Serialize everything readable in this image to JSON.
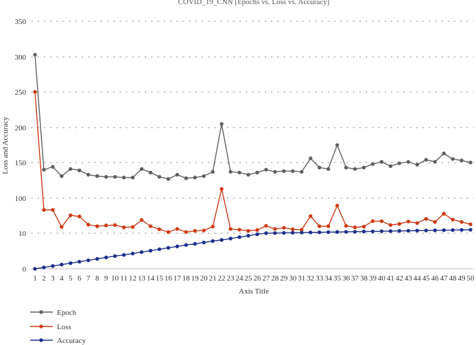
{
  "chart_data": {
    "type": "line",
    "title": "COVID_19_CNN [Epochs vs. Loss vs. Accuracy]",
    "xlabel": "Axis Title",
    "ylabel": "Loss and Accuracy",
    "yticks": [
      "0",
      "10",
      "100",
      "150",
      "200",
      "250",
      "300",
      "350"
    ],
    "categories": [
      "1",
      "2",
      "3",
      "4",
      "5",
      "6",
      "7",
      "8",
      "9",
      "10",
      "11",
      "12",
      "13",
      "14",
      "15",
      "16",
      "17",
      "18",
      "19",
      "20",
      "21",
      "22",
      "23",
      "24",
      "25",
      "26",
      "27",
      "28",
      "29",
      "30",
      "31",
      "32",
      "33",
      "34",
      "35",
      "36",
      "37",
      "38",
      "39",
      "40",
      "41",
      "42",
      "43",
      "44",
      "45",
      "46",
      "47",
      "48",
      "49",
      "50"
    ],
    "grid": "dotted horizontal",
    "legend_position": "bottom-left",
    "series": [
      {
        "name": "Epoch",
        "color": "#5f5f5f",
        "values": [
          303,
          140,
          144,
          131,
          141,
          139,
          133,
          131,
          130,
          130,
          129,
          129,
          141,
          136,
          130,
          127,
          133,
          128,
          129,
          131,
          137,
          205,
          137,
          136,
          133,
          136,
          140,
          137,
          138,
          138,
          137,
          156,
          143,
          141,
          175,
          143,
          141,
          143,
          148,
          151,
          145,
          149,
          151,
          147,
          154,
          151,
          163,
          155,
          153,
          150
        ]
      },
      {
        "name": "Loss",
        "color": "#cf3a14",
        "values": [
          250,
          70,
          70,
          26,
          56,
          53,
          32,
          28,
          30,
          31,
          25,
          26,
          44,
          28,
          20,
          13,
          21,
          13,
          16,
          17,
          27,
          113,
          21,
          19,
          16,
          18,
          29,
          21,
          24,
          20,
          19,
          54,
          28,
          28,
          81,
          29,
          25,
          27,
          41,
          41,
          31,
          34,
          40,
          36,
          47,
          39,
          60,
          45,
          39,
          33
        ]
      },
      {
        "name": "Accuracy",
        "color": "#1c2f8c",
        "values": [
          0.0,
          0.4,
          0.8,
          1.2,
          1.6,
          2.0,
          2.4,
          2.8,
          3.2,
          3.6,
          3.9,
          4.3,
          4.7,
          5.1,
          5.5,
          5.9,
          6.3,
          6.7,
          7.0,
          7.4,
          7.8,
          8.1,
          8.5,
          8.9,
          9.3,
          9.7,
          10.0,
          10.4,
          10.8,
          11.2,
          11.6,
          12.0,
          12.3,
          12.7,
          13.1,
          13.5,
          13.9,
          14.3,
          14.6,
          15.0,
          15.4,
          15.8,
          16.2,
          16.6,
          17.0,
          17.3,
          17.7,
          18.1,
          18.5,
          18.8
        ]
      }
    ]
  }
}
